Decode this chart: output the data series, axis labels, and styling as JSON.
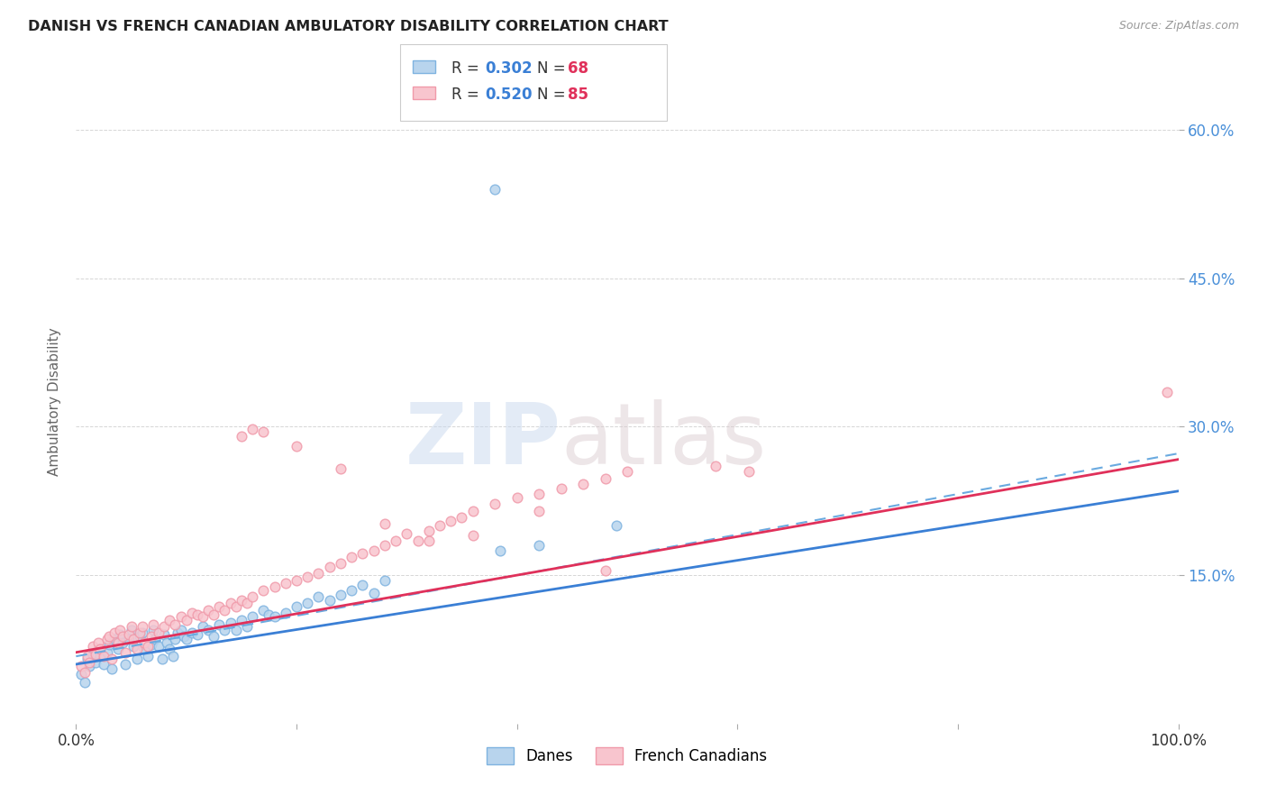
{
  "title": "DANISH VS FRENCH CANADIAN AMBULATORY DISABILITY CORRELATION CHART",
  "source": "Source: ZipAtlas.com",
  "ylabel": "Ambulatory Disability",
  "xlim": [
    0,
    1.0
  ],
  "ylim": [
    0,
    0.65
  ],
  "dane_color": "#7fb3e0",
  "dane_fill": "#b8d4ed",
  "fc_color": "#f09aaa",
  "fc_fill": "#f8c5ce",
  "trend_dane_color": "#3a7fd5",
  "trend_fc_color": "#e0305a",
  "trend_dash_color": "#6aaae0",
  "R_dane": 0.302,
  "N_dane": 68,
  "R_fc": 0.52,
  "N_fc": 85,
  "legend_label_dane": "Danes",
  "legend_label_fc": "French Canadians",
  "watermark_zip": "ZIP",
  "watermark_atlas": "atlas",
  "background_color": "#ffffff",
  "grid_color": "#cccccc",
  "title_color": "#222222",
  "right_axis_color": "#4a90d9",
  "legend_R_color": "#3a7fd5",
  "legend_N_color": "#e0305a",
  "dane_scatter_x": [
    0.005,
    0.008,
    0.01,
    0.012,
    0.015,
    0.018,
    0.02,
    0.022,
    0.025,
    0.028,
    0.03,
    0.032,
    0.035,
    0.038,
    0.04,
    0.042,
    0.045,
    0.048,
    0.05,
    0.052,
    0.055,
    0.058,
    0.06,
    0.062,
    0.065,
    0.068,
    0.07,
    0.072,
    0.075,
    0.078,
    0.08,
    0.082,
    0.085,
    0.088,
    0.09,
    0.092,
    0.095,
    0.098,
    0.1,
    0.105,
    0.11,
    0.115,
    0.12,
    0.125,
    0.13,
    0.135,
    0.14,
    0.145,
    0.15,
    0.155,
    0.16,
    0.17,
    0.175,
    0.18,
    0.19,
    0.2,
    0.21,
    0.22,
    0.23,
    0.24,
    0.25,
    0.26,
    0.27,
    0.28,
    0.385,
    0.42,
    0.49,
    0.38
  ],
  "dane_scatter_y": [
    0.05,
    0.042,
    0.065,
    0.058,
    0.07,
    0.062,
    0.075,
    0.068,
    0.06,
    0.072,
    0.08,
    0.055,
    0.085,
    0.075,
    0.09,
    0.082,
    0.06,
    0.085,
    0.095,
    0.078,
    0.065,
    0.088,
    0.092,
    0.075,
    0.068,
    0.08,
    0.095,
    0.085,
    0.078,
    0.065,
    0.09,
    0.082,
    0.075,
    0.068,
    0.085,
    0.092,
    0.095,
    0.088,
    0.085,
    0.092,
    0.09,
    0.098,
    0.095,
    0.088,
    0.1,
    0.095,
    0.102,
    0.095,
    0.105,
    0.098,
    0.108,
    0.115,
    0.11,
    0.108,
    0.112,
    0.118,
    0.122,
    0.128,
    0.125,
    0.13,
    0.135,
    0.14,
    0.132,
    0.145,
    0.175,
    0.18,
    0.2,
    0.54
  ],
  "fc_scatter_x": [
    0.005,
    0.008,
    0.01,
    0.012,
    0.015,
    0.018,
    0.02,
    0.022,
    0.025,
    0.028,
    0.03,
    0.032,
    0.035,
    0.038,
    0.04,
    0.042,
    0.045,
    0.048,
    0.05,
    0.052,
    0.055,
    0.058,
    0.06,
    0.062,
    0.065,
    0.068,
    0.07,
    0.075,
    0.08,
    0.085,
    0.09,
    0.095,
    0.1,
    0.105,
    0.11,
    0.115,
    0.12,
    0.125,
    0.13,
    0.135,
    0.14,
    0.145,
    0.15,
    0.155,
    0.16,
    0.17,
    0.18,
    0.19,
    0.2,
    0.21,
    0.22,
    0.23,
    0.24,
    0.25,
    0.26,
    0.27,
    0.28,
    0.29,
    0.3,
    0.31,
    0.32,
    0.33,
    0.34,
    0.35,
    0.36,
    0.38,
    0.4,
    0.42,
    0.44,
    0.46,
    0.48,
    0.5,
    0.15,
    0.16,
    0.17,
    0.2,
    0.24,
    0.28,
    0.32,
    0.36,
    0.42,
    0.48,
    0.61,
    0.58,
    0.99
  ],
  "fc_scatter_y": [
    0.058,
    0.052,
    0.068,
    0.062,
    0.078,
    0.07,
    0.082,
    0.075,
    0.068,
    0.085,
    0.088,
    0.065,
    0.092,
    0.082,
    0.095,
    0.088,
    0.072,
    0.09,
    0.098,
    0.085,
    0.075,
    0.092,
    0.098,
    0.082,
    0.078,
    0.088,
    0.1,
    0.092,
    0.098,
    0.105,
    0.1,
    0.108,
    0.105,
    0.112,
    0.11,
    0.108,
    0.115,
    0.11,
    0.118,
    0.115,
    0.122,
    0.118,
    0.125,
    0.122,
    0.128,
    0.135,
    0.138,
    0.142,
    0.145,
    0.148,
    0.152,
    0.158,
    0.162,
    0.168,
    0.172,
    0.175,
    0.18,
    0.185,
    0.192,
    0.185,
    0.195,
    0.2,
    0.205,
    0.208,
    0.215,
    0.222,
    0.228,
    0.232,
    0.238,
    0.242,
    0.248,
    0.255,
    0.29,
    0.298,
    0.295,
    0.28,
    0.258,
    0.202,
    0.185,
    0.19,
    0.215,
    0.155,
    0.255,
    0.26,
    0.335
  ],
  "trend_dane_m": 0.175,
  "trend_dane_b": 0.06,
  "trend_fc_m": 0.195,
  "trend_fc_b": 0.072,
  "trend_dash_m": 0.205,
  "trend_dash_b": 0.068
}
